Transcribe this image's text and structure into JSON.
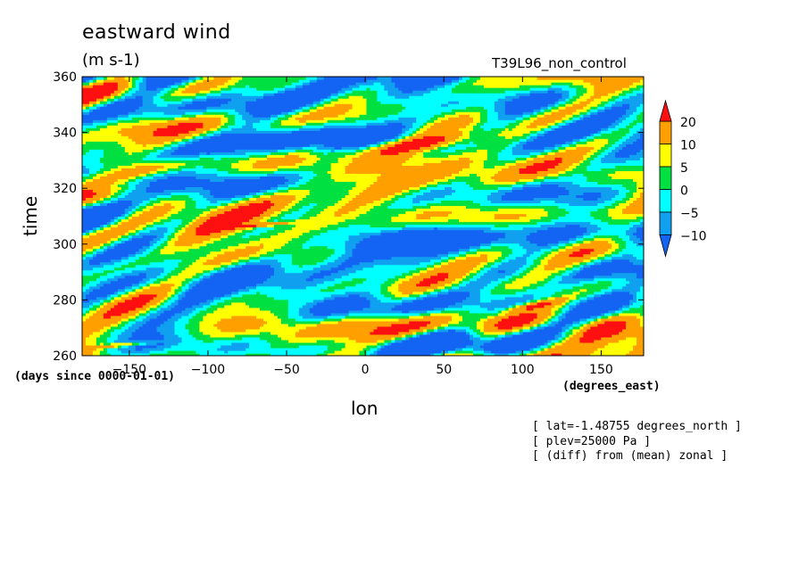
{
  "header": {
    "title": "eastward wind",
    "units": "(m s-1)",
    "run": "T39L96_non_control"
  },
  "notes": {
    "lat": "[ lat=-1.48755 degrees_north ]",
    "plev": "[ plev=25000 Pa ]",
    "diff": "[ (diff) from (mean) zonal ]"
  },
  "chart_data": {
    "type": "heatmap",
    "title": "eastward wind",
    "xlabel": "lon",
    "ylabel": "time",
    "x_units": "(degrees_east)",
    "y_units": "(days since 0000-01-01)",
    "xlim": [
      -180,
      177
    ],
    "ylim": [
      260,
      360
    ],
    "x_ticks": [
      -150,
      -100,
      -50,
      0,
      50,
      100,
      150
    ],
    "y_ticks": [
      260,
      280,
      300,
      320,
      340,
      360
    ],
    "colorbar": {
      "levels": [
        -10,
        -5,
        0,
        5,
        10,
        20
      ],
      "labels": [
        "20",
        "10",
        "5",
        "0",
        "-5",
        "-10"
      ],
      "colors": [
        "#1464f4",
        "#10a0f0",
        "#00ffff",
        "#00e040",
        "#ffff00",
        "#ffa000",
        "#ff1010"
      ],
      "extend": "both"
    },
    "features": [
      {
        "kind": "strong-positive-band",
        "lon": [
          -180,
          -105
        ],
        "time": [
          320,
          333
        ]
      },
      {
        "kind": "strong-positive-band",
        "lon": [
          -15,
          80
        ],
        "time": [
          330,
          342
        ]
      },
      {
        "kind": "strong-positive-band",
        "lon": [
          -180,
          -130
        ],
        "time": [
          262,
          266
        ]
      },
      {
        "kind": "strong-positive-band",
        "lon": [
          90,
          130
        ],
        "time": [
          275,
          282
        ]
      },
      {
        "kind": "strong-positive-band",
        "lon": [
          -90,
          -40
        ],
        "time": [
          305,
          309
        ]
      }
    ]
  }
}
